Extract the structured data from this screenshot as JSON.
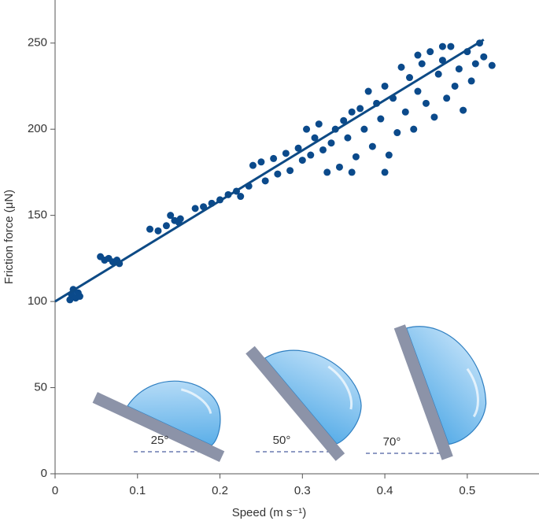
{
  "chart_data": {
    "type": "scatter",
    "xlabel": "Speed (m s⁻¹)",
    "ylabel": "Friction force (μN)",
    "color": "#0b4a8b",
    "x": [
      0.018,
      0.02,
      0.022,
      0.025,
      0.028,
      0.03,
      0.055,
      0.06,
      0.065,
      0.07,
      0.075,
      0.078,
      0.115,
      0.125,
      0.135,
      0.14,
      0.145,
      0.15,
      0.152,
      0.17,
      0.18,
      0.19,
      0.2,
      0.21,
      0.22,
      0.225,
      0.235,
      0.24,
      0.25,
      0.255,
      0.265,
      0.27,
      0.28,
      0.285,
      0.295,
      0.3,
      0.305,
      0.31,
      0.315,
      0.32,
      0.325,
      0.33,
      0.335,
      0.34,
      0.345,
      0.35,
      0.355,
      0.36,
      0.365,
      0.37,
      0.375,
      0.38,
      0.385,
      0.39,
      0.395,
      0.4,
      0.405,
      0.41,
      0.415,
      0.42,
      0.425,
      0.43,
      0.435,
      0.44,
      0.445,
      0.45,
      0.455,
      0.46,
      0.465,
      0.47,
      0.475,
      0.48,
      0.485,
      0.49,
      0.495,
      0.5,
      0.505,
      0.51,
      0.52,
      0.53,
      0.515,
      0.47,
      0.44,
      0.4,
      0.36
    ],
    "y": [
      101,
      104,
      107,
      102,
      105,
      103,
      126,
      124,
      125,
      123,
      124,
      122,
      142,
      141,
      144,
      150,
      147,
      146,
      148,
      154,
      155,
      157,
      159,
      162,
      164,
      161,
      167,
      179,
      181,
      170,
      183,
      174,
      186,
      176,
      189,
      182,
      200,
      185,
      195,
      203,
      188,
      175,
      192,
      200,
      178,
      205,
      195,
      210,
      184,
      212,
      200,
      222,
      190,
      215,
      206,
      225,
      185,
      218,
      198,
      236,
      210,
      230,
      200,
      222,
      238,
      215,
      245,
      207,
      232,
      240,
      218,
      248,
      225,
      235,
      211,
      245,
      228,
      238,
      242,
      237,
      250,
      248,
      243,
      175,
      175
    ],
    "fit": {
      "color": "#0d4a85",
      "x": [
        0,
        0.52
      ],
      "y": [
        100,
        252
      ]
    },
    "xlim": [
      0,
      0.587
    ],
    "ylim": [
      0,
      275
    ],
    "xticks": [
      0,
      0.1,
      0.2,
      0.3,
      0.4,
      0.5
    ],
    "yticks": [
      0,
      50,
      100,
      150,
      200,
      250
    ],
    "annotations": [
      "25°",
      "50°",
      "70°"
    ]
  }
}
